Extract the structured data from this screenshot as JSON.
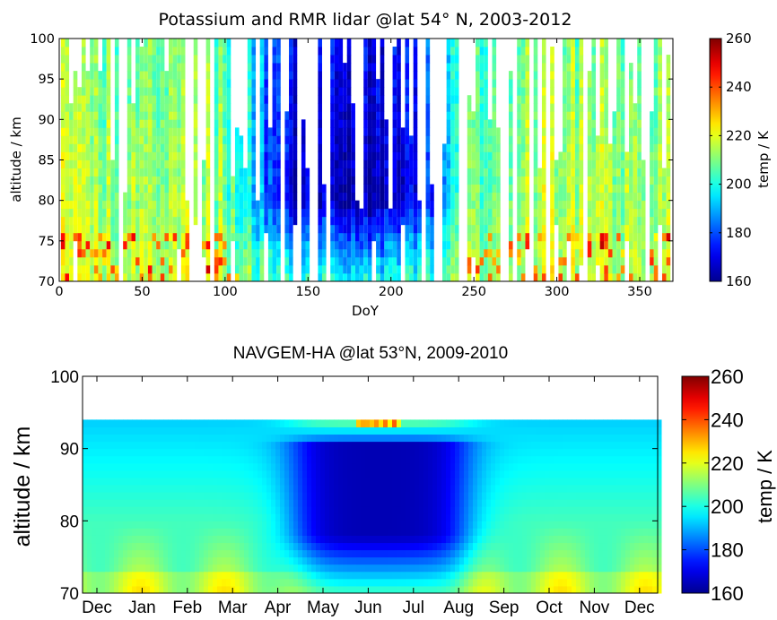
{
  "chart_data": [
    {
      "type": "heatmap",
      "title": "Potassium and RMR lidar @lat 54° N, 2003-2012",
      "xlabel": "DoY",
      "ylabel": "altitude / km",
      "xlim": [
        0,
        370
      ],
      "ylim": [
        70,
        100
      ],
      "xticks": [
        "0",
        "50",
        "100",
        "150",
        "200",
        "250",
        "300",
        "350"
      ],
      "yticks": [
        "70",
        "75",
        "80",
        "85",
        "90",
        "95",
        "100"
      ],
      "colorbar": {
        "label": "temp / K",
        "range": [
          160,
          260
        ],
        "ticks": [
          "160",
          "180",
          "200",
          "220",
          "240",
          "260"
        ]
      },
      "colormap": [
        "#00008f",
        "#0000ff",
        "#0080ff",
        "#00ffff",
        "#80ff80",
        "#ffff00",
        "#ff8000",
        "#ff0000",
        "#800000"
      ],
      "description_of_field": "temperature vs day of year and altitude; cold (~160-175 K) above ~80 km from May to August, warm (~200-230 K) near 70-80 km in winter; many data gaps (white columns)"
    },
    {
      "type": "heatmap",
      "title": "NAVGEM-HA @lat 53°N,  2009-2010",
      "xlabel": "",
      "ylabel": "altitude / km",
      "ylim": [
        70,
        100
      ],
      "data_top_altitude": 94,
      "months": [
        "Dec",
        "Jan",
        "Feb",
        "Mar",
        "Apr",
        "May",
        "Jun",
        "Jul",
        "Aug",
        "Sep",
        "Oct",
        "Nov",
        "Dec"
      ],
      "yticks": [
        "70",
        "80",
        "90",
        "100"
      ],
      "colorbar": {
        "label": "temp  / K",
        "range": [
          160,
          260
        ],
        "ticks": [
          "160",
          "180",
          "200",
          "220",
          "240",
          "260"
        ]
      },
      "colormap": [
        "#00008f",
        "#0000ff",
        "#0080ff",
        "#00ffff",
        "#80ff80",
        "#ffff00",
        "#ff8000",
        "#ff0000",
        "#800000"
      ],
      "description_of_field": "smooth model temperature; cold core (~165 K) at 75-90 km from mid-May to August with warm spots (~240 K) near 93 km in June; 195-225 K elsewhere, warmest near 70-75 km in winter; no data above 94 km"
    }
  ]
}
